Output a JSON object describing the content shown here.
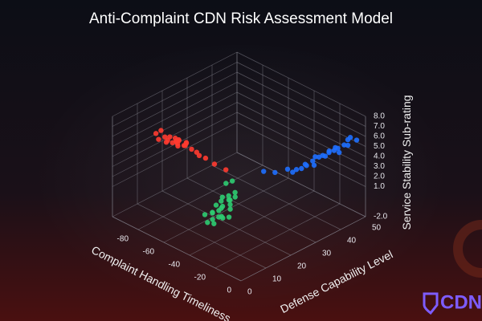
{
  "chart_data": {
    "type": "scatter3d",
    "title": "Anti-Complaint CDN Risk Assessment Model",
    "xlabel": "Complaint Handling Timeliness",
    "ylabel": "Defense Capability Level",
    "zlabel": "Service Stability Sub-rating",
    "xlim": [
      -100,
      0
    ],
    "ylim": [
      0,
      50
    ],
    "zlim": [
      -2,
      8
    ],
    "xticks": [
      -80,
      -60,
      -40,
      -20,
      0
    ],
    "yticks": [
      0,
      10,
      20,
      30,
      40,
      50
    ],
    "zticks": [
      {
        "value": -2,
        "label": "-2.0"
      },
      {
        "value": 1,
        "label": "1.0"
      },
      {
        "value": 2,
        "label": "2.0"
      },
      {
        "value": 3,
        "label": "3.0"
      },
      {
        "value": 4,
        "label": "4.0"
      },
      {
        "value": 5,
        "label": "5.0"
      },
      {
        "value": 6,
        "label": "6.0"
      },
      {
        "value": 7,
        "label": "7.0"
      },
      {
        "value": 8,
        "label": "8.0"
      }
    ],
    "grid": true,
    "logo": "CDN",
    "series": [
      {
        "color": "#ff3b30",
        "x": [
          -60,
          -65,
          -55,
          -58,
          -70,
          -62,
          -52,
          -67,
          -60,
          -56,
          -63,
          -72,
          -50,
          -59,
          -64,
          -54,
          -68,
          -61,
          -57,
          -48,
          -45,
          -40,
          -35,
          -66,
          -53
        ],
        "y": [
          5,
          3,
          6,
          8,
          4,
          2,
          7,
          6,
          9,
          4,
          5,
          3,
          8,
          1,
          7,
          5,
          2,
          6,
          3,
          8,
          9,
          10,
          12,
          9,
          2
        ],
        "z": [
          7.5,
          7.8,
          7.2,
          7.0,
          8.0,
          7.6,
          6.9,
          7.3,
          6.8,
          7.9,
          7.1,
          7.7,
          6.6,
          8.1,
          6.9,
          7.4,
          7.5,
          7.0,
          8.2,
          6.4,
          6.2,
          5.8,
          5.3,
          6.7,
          7.8
        ]
      },
      {
        "color": "#1e6fff",
        "x": [
          -10,
          -8,
          -12,
          -5,
          -14,
          -9,
          -6,
          -11,
          -7,
          -13,
          -4,
          -10,
          -15,
          -8,
          -12,
          -6,
          -9,
          -3,
          -18,
          -22,
          -25,
          -11,
          -7,
          -16,
          -5
        ],
        "y": [
          38,
          42,
          35,
          44,
          33,
          40,
          46,
          37,
          41,
          31,
          45,
          39,
          30,
          43,
          36,
          47,
          34,
          48,
          28,
          25,
          22,
          32,
          39,
          29,
          42
        ],
        "z": [
          5.0,
          5.4,
          4.7,
          5.6,
          4.5,
          5.1,
          5.8,
          4.9,
          5.3,
          4.4,
          5.5,
          4.8,
          4.3,
          5.2,
          5.0,
          5.9,
          4.6,
          5.7,
          4.4,
          4.2,
          4.5,
          4.7,
          5.5,
          4.1,
          5.1
        ]
      },
      {
        "color": "#2ecc71",
        "x": [
          -25,
          -28,
          -22,
          -30,
          -20,
          -26,
          -24,
          -31,
          -21,
          -27,
          -23,
          -29,
          -19,
          -25,
          -32,
          -22,
          -26,
          -28,
          -24,
          -30,
          -33,
          -30,
          -20,
          -27,
          -23
        ],
        "y": [
          5,
          3,
          7,
          4,
          6,
          2,
          8,
          6,
          3,
          9,
          1,
          7,
          5,
          4,
          2,
          9,
          6,
          1,
          10,
          8,
          11,
          12,
          3,
          5,
          7
        ],
        "z": [
          3.0,
          2.6,
          3.3,
          2.4,
          3.1,
          2.2,
          3.5,
          2.8,
          2.7,
          3.6,
          2.1,
          3.2,
          2.5,
          2.9,
          2.3,
          3.8,
          3.0,
          1.9,
          4.0,
          3.4,
          4.2,
          4.5,
          2.6,
          2.0,
          3.7
        ]
      }
    ]
  }
}
